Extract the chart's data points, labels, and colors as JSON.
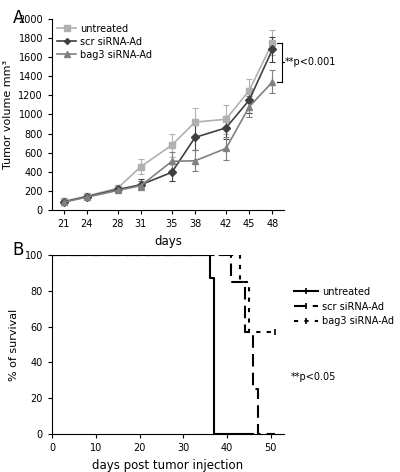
{
  "panel_A": {
    "days": [
      21,
      24,
      28,
      31,
      35,
      38,
      42,
      45,
      48
    ],
    "untreated": {
      "mean": [
        90,
        145,
        230,
        455,
        680,
        920,
        950,
        1250,
        1750
      ],
      "err": [
        20,
        25,
        35,
        80,
        120,
        150,
        150,
        120,
        130
      ],
      "color": "#b0b0b0",
      "marker": "s",
      "markersize": 5,
      "label": "untreated"
    },
    "scr": {
      "mean": [
        85,
        140,
        215,
        265,
        395,
        760,
        860,
        1150,
        1680
      ],
      "err": [
        15,
        20,
        30,
        55,
        90,
        130,
        120,
        130,
        130
      ],
      "color": "#404040",
      "marker": "D",
      "markersize": 4,
      "label": "scr siRNA-Ad"
    },
    "bag3": {
      "mean": [
        82,
        135,
        205,
        255,
        510,
        515,
        645,
        1080,
        1340
      ],
      "err": [
        15,
        20,
        30,
        50,
        100,
        110,
        120,
        110,
        120
      ],
      "color": "#808080",
      "marker": "^",
      "markersize": 5,
      "label": "bag3 siRNA-Ad"
    },
    "ylabel": "Tumor volume mm³",
    "xlabel": "days",
    "ylim": [
      0,
      2000
    ],
    "yticks": [
      0,
      200,
      400,
      600,
      800,
      1000,
      1200,
      1400,
      1600,
      1800,
      2000
    ],
    "xticks": [
      21,
      24,
      28,
      31,
      35,
      38,
      42,
      45,
      48
    ],
    "pval_text": "**p<0.001",
    "panel_label": "A"
  },
  "panel_B": {
    "untreated": {
      "x": [
        0,
        36,
        36,
        37,
        37,
        46,
        46
      ],
      "y": [
        100,
        100,
        87,
        87,
        0,
        0,
        0
      ],
      "color": "#000000",
      "linestyle": "solid",
      "lw": 1.5,
      "label": "untreated"
    },
    "scr": {
      "x": [
        0,
        41,
        41,
        44,
        44,
        46,
        46,
        47,
        47,
        51,
        51
      ],
      "y": [
        100,
        100,
        85,
        85,
        57,
        57,
        25,
        25,
        0,
        0,
        0
      ],
      "color": "#000000",
      "linestyle": "dashed",
      "lw": 1.5,
      "dashes": [
        6,
        3
      ],
      "label": "scr siRNA-Ad"
    },
    "bag3": {
      "x": [
        0,
        43,
        43,
        45,
        45,
        46,
        46,
        51,
        51
      ],
      "y": [
        100,
        100,
        85,
        85,
        57,
        57,
        57,
        57,
        57
      ],
      "color": "#000000",
      "linestyle": "dotted",
      "lw": 1.5,
      "dashes": [
        2,
        3
      ],
      "label": "bag3 siRNA-Ad"
    },
    "ylabel": "% of survival",
    "xlabel": "days post tumor injection",
    "ylim": [
      0,
      100
    ],
    "xlim": [
      0,
      53
    ],
    "yticks": [
      0,
      20,
      40,
      60,
      80,
      100
    ],
    "xticks": [
      0,
      10,
      20,
      30,
      40,
      50
    ],
    "pval_text": "**p<0.05",
    "panel_label": "B"
  }
}
